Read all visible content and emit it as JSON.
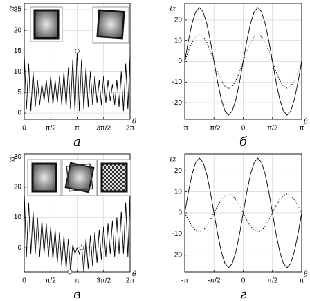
{
  "chart_data": [
    {
      "type": "line",
      "caption": "а",
      "xlabel": "θ",
      "ylabel": "ℓz",
      "grid": true,
      "xlim": [
        0,
        6.283
      ],
      "xticks": [
        0,
        {
          "value": 1.571,
          "label": "π/2"
        },
        {
          "value": 3.142,
          "label": "π"
        },
        {
          "value": 4.712,
          "label": "3π/2"
        },
        {
          "value": 6.283,
          "label": "2π"
        }
      ],
      "ylim": [
        -1.5,
        26.5
      ],
      "yticks": [
        0,
        5,
        10,
        15,
        20,
        25
      ],
      "x": [
        0,
        0.131,
        0.262,
        0.393,
        0.524,
        0.654,
        0.785,
        0.916,
        1.047,
        1.178,
        1.309,
        1.44,
        1.571,
        1.702,
        1.833,
        1.963,
        2.094,
        2.225,
        2.356,
        2.487,
        2.618,
        2.749,
        2.88,
        3.011,
        3.142,
        3.272,
        3.403,
        3.534,
        3.665,
        3.796,
        3.927,
        4.058,
        4.189,
        4.32,
        4.451,
        4.581,
        4.712,
        4.843,
        4.974,
        5.105,
        5.236,
        5.367,
        5.498,
        5.629,
        5.76,
        5.89,
        6.021,
        6.152,
        6.283
      ],
      "series": [
        {
          "color": "#000000",
          "style": "solid",
          "values": [
            14,
            1,
            12,
            0.5,
            10,
            1.5,
            8,
            2,
            7,
            3,
            8,
            2.5,
            9,
            2,
            8,
            2.5,
            9,
            2,
            10,
            1.5,
            11,
            1,
            13,
            0.5,
            15,
            0.5,
            13,
            1,
            11,
            1.5,
            10,
            2,
            9,
            2.5,
            8,
            2,
            9,
            2.5,
            8,
            3,
            7,
            2,
            8,
            1.5,
            10,
            0.5,
            12,
            1,
            14
          ]
        }
      ],
      "markers": {
        "x": [
          3.142
        ],
        "y": [
          15
        ]
      }
    },
    {
      "type": "line",
      "caption": "б",
      "xlabel": "β",
      "ylabel": "ℓz",
      "grid": true,
      "xlim": [
        -3.142,
        3.142
      ],
      "xticks": [
        {
          "value": -3.142,
          "label": "-π"
        },
        {
          "value": -1.571,
          "label": "-π/2"
        },
        0,
        {
          "value": 1.571,
          "label": "π/2"
        },
        {
          "value": 3.142,
          "label": "π"
        }
      ],
      "ylim": [
        -28,
        28
      ],
      "yticks": [
        -20,
        -10,
        0,
        10,
        20
      ],
      "x": [
        -3.142,
        -2.945,
        -2.749,
        -2.553,
        -2.356,
        -2.16,
        -1.963,
        -1.767,
        -1.571,
        -1.374,
        -1.178,
        -0.982,
        -0.785,
        -0.589,
        -0.393,
        -0.196,
        0,
        0.196,
        0.393,
        0.589,
        0.785,
        0.982,
        1.178,
        1.374,
        1.571,
        1.767,
        1.963,
        2.16,
        2.356,
        2.553,
        2.749,
        2.945,
        3.142
      ],
      "series": [
        {
          "color": "#000000",
          "style": "solid",
          "values": [
            0,
            10,
            18.4,
            24,
            26,
            24,
            18.4,
            10,
            0,
            -10,
            -18.4,
            -24,
            -26,
            -24,
            -18.4,
            -10,
            0,
            10,
            18.4,
            24,
            26,
            24,
            18.4,
            10,
            0,
            -10,
            -18.4,
            -24,
            -26,
            -24,
            -18.4,
            -10,
            0
          ]
        },
        {
          "color": "#000000",
          "style": "dotted",
          "values": [
            0,
            5,
            9.2,
            12,
            13,
            12,
            9.2,
            5,
            0,
            -5,
            -9.2,
            -12,
            -13,
            -12,
            -9.2,
            -5,
            0,
            5,
            9.2,
            12,
            13,
            12,
            9.2,
            5,
            0,
            -5,
            -9.2,
            -12,
            -13,
            -12,
            -9.2,
            -5,
            0
          ]
        }
      ]
    },
    {
      "type": "line",
      "caption": "в",
      "xlabel": "θ",
      "ylabel": "ℓz",
      "grid": true,
      "xlim": [
        0,
        6.283
      ],
      "xticks": [
        0,
        {
          "value": 1.571,
          "label": "π/2"
        },
        {
          "value": 3.142,
          "label": "π"
        },
        {
          "value": 4.712,
          "label": "3π/2"
        },
        {
          "value": 6.283,
          "label": "2π"
        }
      ],
      "ylim": [
        -8,
        31
      ],
      "yticks": [
        0,
        10,
        20,
        30
      ],
      "x": [
        0,
        0.131,
        0.262,
        0.393,
        0.524,
        0.654,
        0.785,
        0.916,
        1.047,
        1.178,
        1.309,
        1.44,
        1.571,
        1.702,
        1.833,
        1.963,
        2.094,
        2.225,
        2.356,
        2.487,
        2.618,
        2.749,
        2.88,
        3.011,
        3.142,
        3.272,
        3.403,
        3.534,
        3.665,
        3.796,
        3.927,
        4.058,
        4.189,
        4.32,
        4.451,
        4.581,
        4.712,
        4.843,
        4.974,
        5.105,
        5.236,
        5.367,
        5.498,
        5.629,
        5.76,
        5.89,
        6.021,
        6.152,
        6.283
      ],
      "series": [
        {
          "color": "#000000",
          "style": "solid",
          "values": [
            18,
            -3,
            15,
            -2,
            12,
            -2,
            10,
            -3,
            9,
            -2,
            8,
            -3,
            7,
            -4,
            6,
            -5,
            5,
            -6,
            4,
            -7,
            3,
            -8,
            1,
            -2,
            0,
            -2,
            1,
            -8,
            3,
            -7,
            4,
            -6,
            5,
            -5,
            6,
            -4,
            7,
            -3,
            8,
            -2,
            9,
            -3,
            10,
            -2,
            12,
            -2,
            15,
            -3,
            18
          ]
        }
      ],
      "markers": {
        "x": [
          2.71,
          3.41
        ],
        "y": [
          -8,
          0
        ]
      }
    },
    {
      "type": "line",
      "caption": "г",
      "xlabel": "β",
      "ylabel": "ℓz",
      "grid": true,
      "xlim": [
        -3.142,
        3.142
      ],
      "xticks": [
        {
          "value": -3.142,
          "label": "-π"
        },
        {
          "value": -1.571,
          "label": "-π/2"
        },
        0,
        {
          "value": 1.571,
          "label": "π/2"
        },
        {
          "value": 3.142,
          "label": "π"
        }
      ],
      "ylim": [
        -28,
        28
      ],
      "yticks": [
        -20,
        -10,
        0,
        10,
        20
      ],
      "x": [
        -3.142,
        -2.945,
        -2.749,
        -2.553,
        -2.356,
        -2.16,
        -1.963,
        -1.767,
        -1.571,
        -1.374,
        -1.178,
        -0.982,
        -0.785,
        -0.589,
        -0.393,
        -0.196,
        0,
        0.196,
        0.393,
        0.589,
        0.785,
        0.982,
        1.178,
        1.374,
        1.571,
        1.767,
        1.963,
        2.16,
        2.356,
        2.553,
        2.749,
        2.945,
        3.142
      ],
      "series": [
        {
          "color": "#000000",
          "style": "solid",
          "values": [
            0,
            10,
            18.4,
            24,
            26,
            24,
            18.4,
            10,
            0,
            -10,
            -18.4,
            -24,
            -26,
            -24,
            -18.4,
            -10,
            0,
            10,
            18.4,
            24,
            26,
            24,
            18.4,
            10,
            0,
            -10,
            -18.4,
            -24,
            -26,
            -24,
            -18.4,
            -10,
            0
          ]
        },
        {
          "color": "#000000",
          "style": "dotted",
          "values": [
            0,
            -3.4,
            -6.4,
            -8.3,
            -9,
            -8.3,
            -6.4,
            -3.4,
            0,
            3.4,
            6.4,
            8.3,
            9,
            8.3,
            6.4,
            3.4,
            0,
            -3.4,
            -6.4,
            -8.3,
            -9,
            -8.3,
            -6.4,
            -3.4,
            0,
            3.4,
            6.4,
            8.3,
            9,
            8.3,
            6.4,
            3.4,
            0
          ]
        }
      ]
    }
  ]
}
